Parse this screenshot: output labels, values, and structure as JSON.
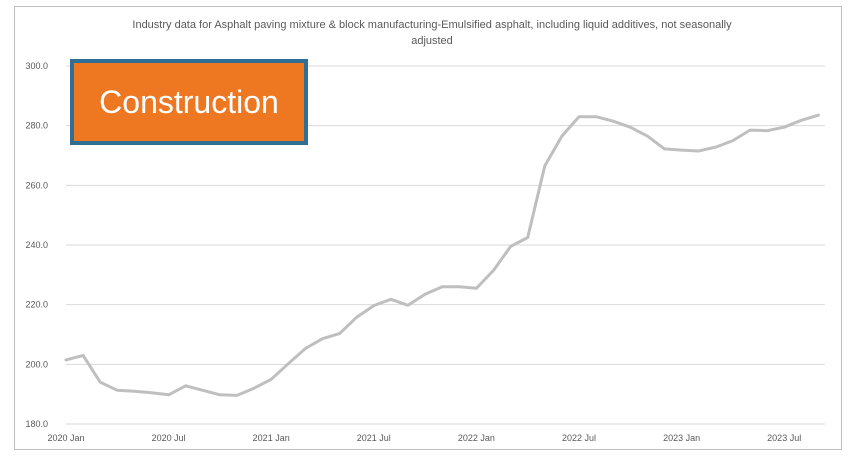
{
  "badge": {
    "label": "Construction",
    "fill_color": "#ee7722",
    "border_color": "#2f6f93"
  },
  "chart_data": {
    "type": "line",
    "title_lines": [
      "Industry data for Asphalt paving mixture & block manufacturing-Emulsified asphalt, including liquid additives, not seasonally",
      "adjusted"
    ],
    "xlabel": "",
    "ylabel": "",
    "ylim": [
      180,
      300
    ],
    "y_ticks": [
      "180.0",
      "200.0",
      "220.0",
      "240.0",
      "260.0",
      "280.0",
      "300.0"
    ],
    "x_tick_labels": [
      "2020 Jan",
      "2020 Jul",
      "2021 Jan",
      "2021 Jul",
      "2022 Jan",
      "2022 Jul",
      "2023 Jan",
      "2023 Jul"
    ],
    "grid": true,
    "line_color": "#bfbfbf",
    "series": [
      {
        "x": [
          "2020-01",
          "2020-02",
          "2020-03",
          "2020-04",
          "2020-05",
          "2020-06",
          "2020-07",
          "2020-08",
          "2020-09",
          "2020-10",
          "2020-11",
          "2020-12",
          "2021-01",
          "2021-02",
          "2021-03",
          "2021-04",
          "2021-05",
          "2021-06",
          "2021-07",
          "2021-08",
          "2021-09",
          "2021-10",
          "2021-11",
          "2021-12",
          "2022-01",
          "2022-02",
          "2022-03",
          "2022-04",
          "2022-05",
          "2022-06",
          "2022-07",
          "2022-08",
          "2022-09",
          "2022-10",
          "2022-11",
          "2022-12",
          "2023-01",
          "2023-02",
          "2023-03",
          "2023-04",
          "2023-05",
          "2023-06",
          "2023-07",
          "2023-08",
          "2023-09"
        ],
        "values": [
          201.5,
          203.0,
          194.0,
          191.3,
          191.0,
          190.5,
          189.8,
          192.8,
          191.3,
          189.8,
          189.6,
          192.0,
          195.0,
          200.2,
          205.3,
          208.6,
          210.3,
          215.8,
          219.7,
          221.8,
          219.8,
          223.5,
          226.0,
          226.0,
          225.5,
          231.5,
          239.5,
          242.5,
          266.5,
          276.5,
          283.0,
          283.0,
          281.5,
          279.5,
          276.5,
          272.2,
          271.8,
          271.5,
          272.8,
          275.0,
          278.5,
          278.3,
          279.5,
          281.8,
          283.5
        ]
      }
    ]
  }
}
